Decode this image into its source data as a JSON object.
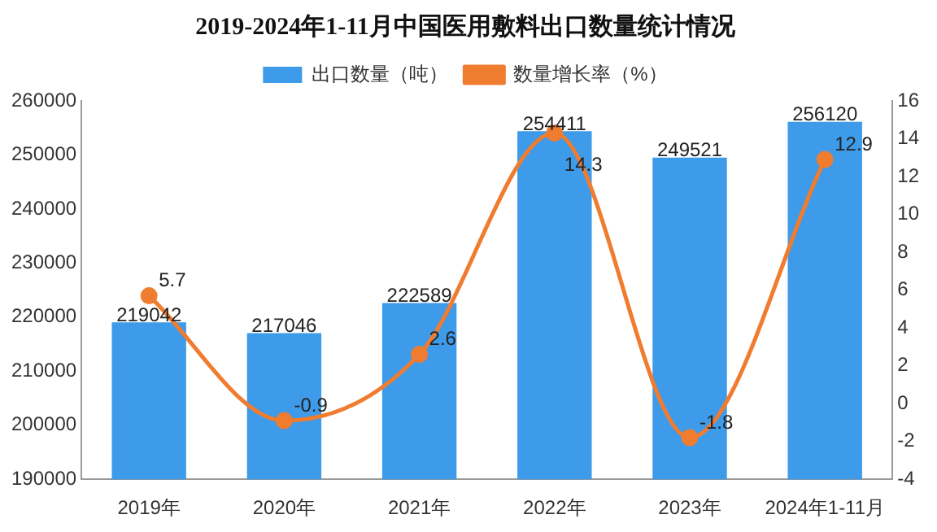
{
  "chart_data": {
    "type": "bar",
    "title": "2019-2024年1-11月中国医用敷料出口数量统计情况",
    "categories": [
      "2019年",
      "2020年",
      "2021年",
      "2022年",
      "2023年",
      "2024年1-11月"
    ],
    "series": [
      {
        "name": "出口数量（吨）",
        "color": "#3d9be9",
        "values": [
          219042,
          217046,
          222589,
          254411,
          249521,
          256120
        ]
      },
      {
        "name": "数量增长率（%）",
        "type": "line",
        "axis": "y2",
        "color": "#f07c30",
        "values": [
          5.7,
          -0.9,
          2.6,
          14.3,
          -1.8,
          12.9
        ]
      }
    ],
    "ylim": [
      190000,
      260000
    ],
    "yticks": [
      190000,
      200000,
      210000,
      220000,
      230000,
      240000,
      250000,
      260000
    ],
    "y2lim": [
      -4,
      16
    ],
    "y2ticks": [
      -4,
      -2,
      0,
      2,
      4,
      6,
      8,
      10,
      12,
      14,
      16
    ],
    "legend": "top",
    "marker": "circle",
    "line_style": "solid",
    "data_labels": true,
    "grid": false
  }
}
